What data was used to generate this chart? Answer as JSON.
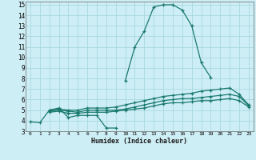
{
  "xlabel": "Humidex (Indice chaleur)",
  "bg_color": "#ceeef5",
  "grid_color": "#aad8e0",
  "line_color": "#1a7a6e",
  "xlim": [
    -0.5,
    23.5
  ],
  "ylim": [
    3,
    15.3
  ],
  "xticks": [
    0,
    1,
    2,
    3,
    4,
    5,
    6,
    7,
    8,
    9,
    10,
    11,
    12,
    13,
    14,
    15,
    16,
    17,
    18,
    19,
    20,
    21,
    22,
    23
  ],
  "yticks": [
    3,
    4,
    5,
    6,
    7,
    8,
    9,
    10,
    11,
    12,
    13,
    14,
    15
  ],
  "series": [
    [
      3.9,
      3.8,
      5.0,
      5.2,
      4.3,
      4.5,
      4.5,
      4.5,
      3.3,
      3.3,
      null,
      null,
      null,
      null,
      null,
      null,
      null,
      null,
      null,
      null,
      null,
      null,
      null,
      null
    ],
    [
      null,
      null,
      null,
      null,
      null,
      null,
      null,
      null,
      null,
      null,
      7.8,
      11.0,
      12.5,
      14.8,
      15.0,
      15.0,
      14.5,
      13.0,
      9.5,
      8.1,
      null,
      null,
      null,
      null
    ],
    [
      null,
      null,
      5.0,
      5.1,
      5.0,
      5.0,
      5.2,
      5.2,
      5.2,
      5.3,
      5.5,
      5.7,
      5.9,
      6.1,
      6.3,
      6.4,
      6.5,
      6.6,
      6.8,
      6.9,
      7.0,
      7.1,
      6.5,
      5.5
    ],
    [
      null,
      null,
      4.9,
      5.0,
      4.9,
      4.8,
      5.0,
      5.0,
      5.0,
      5.0,
      5.1,
      5.3,
      5.5,
      5.7,
      5.9,
      6.0,
      6.1,
      6.1,
      6.2,
      6.3,
      6.4,
      6.5,
      6.3,
      5.4
    ],
    [
      null,
      null,
      4.8,
      4.9,
      4.7,
      4.7,
      4.8,
      4.8,
      4.8,
      4.9,
      5.0,
      5.1,
      5.2,
      5.4,
      5.6,
      5.7,
      5.7,
      5.8,
      5.9,
      5.9,
      6.0,
      6.1,
      5.9,
      5.3
    ]
  ]
}
